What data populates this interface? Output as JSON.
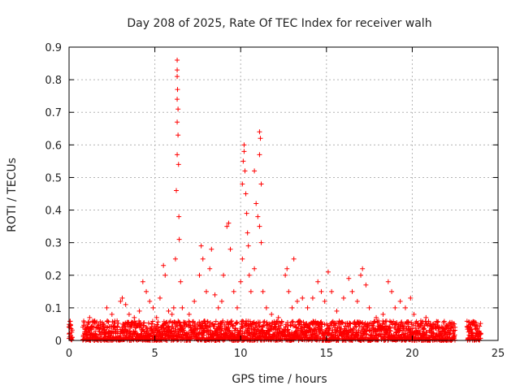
{
  "chart_data": {
    "type": "scatter",
    "title": "Day 208 of 2025, Rate Of TEC Index for receiver walh",
    "xlabel": "GPS time / hours",
    "ylabel": "ROTI / TECUs",
    "xlim": [
      0,
      25
    ],
    "ylim": [
      0,
      0.9
    ],
    "x_ticks": [
      "0",
      "5",
      "10",
      "15",
      "20",
      "25"
    ],
    "y_ticks": [
      "0",
      "0.1",
      "0.2",
      "0.3",
      "0.4",
      "0.5",
      "0.6",
      "0.7",
      "0.8",
      "0.9"
    ],
    "grid": true,
    "marker": "+",
    "color": "#ff0000",
    "background_band": {
      "x_ranges": [
        [
          0.0,
          0.2
        ],
        [
          0.8,
          22.5
        ],
        [
          23.2,
          24.0
        ]
      ],
      "typical_max": 0.06
    },
    "points": [
      [
        0.0,
        0.02
      ],
      [
        0.1,
        0.015
      ],
      [
        1.1,
        0.05
      ],
      [
        1.2,
        0.07
      ],
      [
        1.5,
        0.06
      ],
      [
        2.0,
        0.05
      ],
      [
        2.2,
        0.1
      ],
      [
        2.5,
        0.08
      ],
      [
        2.8,
        0.06
      ],
      [
        3.0,
        0.12
      ],
      [
        3.1,
        0.13
      ],
      [
        3.3,
        0.11
      ],
      [
        3.5,
        0.08
      ],
      [
        3.8,
        0.07
      ],
      [
        4.1,
        0.09
      ],
      [
        4.3,
        0.18
      ],
      [
        4.5,
        0.15
      ],
      [
        4.7,
        0.12
      ],
      [
        4.9,
        0.1
      ],
      [
        5.1,
        0.07
      ],
      [
        5.3,
        0.13
      ],
      [
        5.5,
        0.23
      ],
      [
        5.6,
        0.2
      ],
      [
        5.8,
        0.09
      ],
      [
        6.0,
        0.08
      ],
      [
        6.1,
        0.1
      ],
      [
        6.2,
        0.25
      ],
      [
        6.25,
        0.46
      ],
      [
        6.3,
        0.57
      ],
      [
        6.3,
        0.67
      ],
      [
        6.3,
        0.74
      ],
      [
        6.32,
        0.77
      ],
      [
        6.3,
        0.81
      ],
      [
        6.3,
        0.83
      ],
      [
        6.3,
        0.86
      ],
      [
        6.35,
        0.71
      ],
      [
        6.35,
        0.63
      ],
      [
        6.38,
        0.54
      ],
      [
        6.4,
        0.38
      ],
      [
        6.42,
        0.31
      ],
      [
        6.5,
        0.18
      ],
      [
        6.6,
        0.1
      ],
      [
        7.0,
        0.08
      ],
      [
        7.3,
        0.12
      ],
      [
        7.6,
        0.2
      ],
      [
        7.7,
        0.29
      ],
      [
        7.8,
        0.25
      ],
      [
        8.0,
        0.15
      ],
      [
        8.2,
        0.22
      ],
      [
        8.3,
        0.28
      ],
      [
        8.5,
        0.14
      ],
      [
        8.7,
        0.1
      ],
      [
        8.9,
        0.12
      ],
      [
        9.0,
        0.2
      ],
      [
        9.2,
        0.35
      ],
      [
        9.3,
        0.36
      ],
      [
        9.4,
        0.28
      ],
      [
        9.6,
        0.15
      ],
      [
        9.8,
        0.1
      ],
      [
        10.0,
        0.18
      ],
      [
        10.1,
        0.25
      ],
      [
        10.1,
        0.48
      ],
      [
        10.15,
        0.55
      ],
      [
        10.2,
        0.58
      ],
      [
        10.2,
        0.6
      ],
      [
        10.25,
        0.52
      ],
      [
        10.3,
        0.45
      ],
      [
        10.35,
        0.39
      ],
      [
        10.4,
        0.33
      ],
      [
        10.45,
        0.29
      ],
      [
        10.5,
        0.2
      ],
      [
        10.6,
        0.15
      ],
      [
        10.8,
        0.22
      ],
      [
        10.8,
        0.52
      ],
      [
        10.9,
        0.42
      ],
      [
        11.0,
        0.38
      ],
      [
        11.1,
        0.57
      ],
      [
        11.1,
        0.64
      ],
      [
        11.15,
        0.62
      ],
      [
        11.2,
        0.48
      ],
      [
        11.1,
        0.35
      ],
      [
        11.2,
        0.3
      ],
      [
        11.3,
        0.15
      ],
      [
        11.5,
        0.1
      ],
      [
        11.8,
        0.08
      ],
      [
        12.2,
        0.07
      ],
      [
        12.6,
        0.2
      ],
      [
        12.7,
        0.22
      ],
      [
        12.8,
        0.15
      ],
      [
        13.0,
        0.1
      ],
      [
        13.1,
        0.25
      ],
      [
        13.3,
        0.12
      ],
      [
        13.6,
        0.13
      ],
      [
        13.9,
        0.1
      ],
      [
        14.2,
        0.13
      ],
      [
        14.5,
        0.18
      ],
      [
        14.7,
        0.15
      ],
      [
        14.9,
        0.12
      ],
      [
        15.1,
        0.21
      ],
      [
        15.3,
        0.15
      ],
      [
        15.6,
        0.09
      ],
      [
        16.0,
        0.13
      ],
      [
        16.3,
        0.19
      ],
      [
        16.5,
        0.15
      ],
      [
        16.8,
        0.12
      ],
      [
        17.0,
        0.2
      ],
      [
        17.1,
        0.22
      ],
      [
        17.3,
        0.17
      ],
      [
        17.5,
        0.1
      ],
      [
        17.9,
        0.07
      ],
      [
        18.3,
        0.08
      ],
      [
        18.6,
        0.18
      ],
      [
        18.8,
        0.15
      ],
      [
        19.0,
        0.1
      ],
      [
        19.3,
        0.12
      ],
      [
        19.6,
        0.1
      ],
      [
        19.9,
        0.13
      ],
      [
        20.1,
        0.08
      ],
      [
        20.5,
        0.06
      ],
      [
        20.8,
        0.07
      ],
      [
        21.2,
        0.05
      ],
      [
        21.6,
        0.04
      ],
      [
        22.0,
        0.04
      ],
      [
        22.4,
        0.03
      ],
      [
        23.3,
        0.04
      ],
      [
        23.5,
        0.05
      ],
      [
        23.8,
        0.03
      ],
      [
        24.0,
        0.02
      ]
    ]
  }
}
